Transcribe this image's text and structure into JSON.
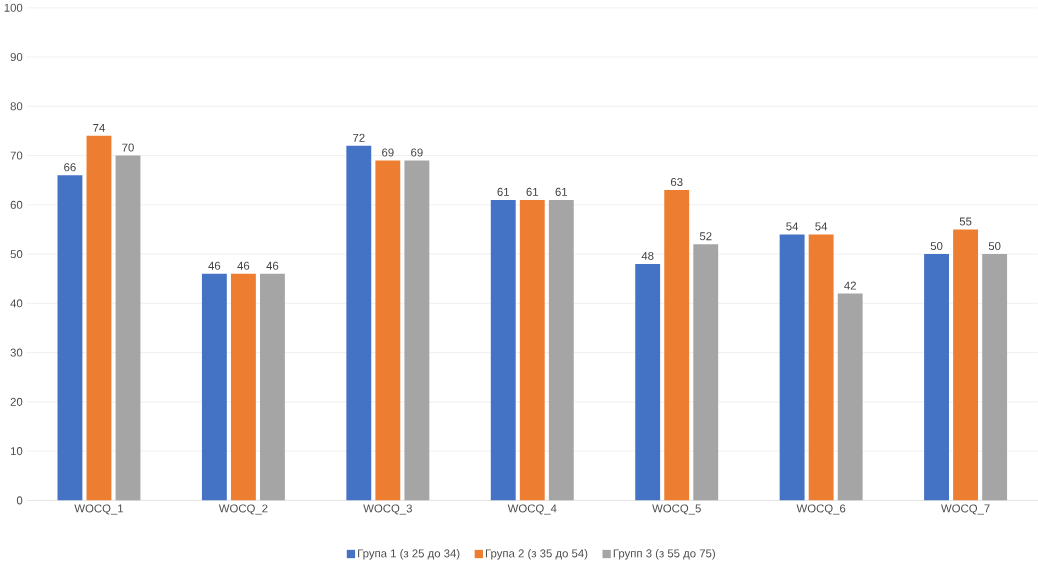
{
  "chart_data": {
    "type": "bar",
    "categories": [
      "WOCQ_1",
      "WOCQ_2",
      "WOCQ_3",
      "WOCQ_4",
      "WOCQ_5",
      "WOCQ_6",
      "WOCQ_7"
    ],
    "series": [
      {
        "name": "Група 1 (з 25 до 34)",
        "color": "#4472c4",
        "values": [
          66,
          46,
          72,
          61,
          48,
          54,
          50
        ]
      },
      {
        "name": "Група 2 (з 35 до 54)",
        "color": "#ed7d31",
        "values": [
          74,
          46,
          69,
          61,
          63,
          54,
          55
        ]
      },
      {
        "name": "Групп 3 (з 55 до 75)",
        "color": "#a5a5a5",
        "values": [
          70,
          46,
          69,
          61,
          52,
          42,
          50
        ]
      }
    ],
    "ylim": [
      0,
      100
    ],
    "yticks": [
      0,
      10,
      20,
      30,
      40,
      50,
      60,
      70,
      80,
      90,
      100
    ],
    "grid": "y",
    "legend": "bottom",
    "data_labels": true
  }
}
